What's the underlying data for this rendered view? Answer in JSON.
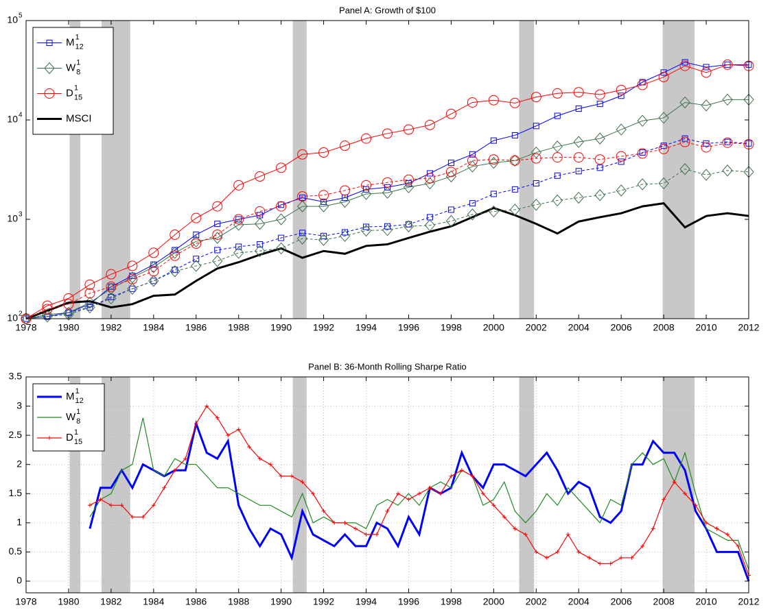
{
  "chart_data": [
    {
      "type": "line",
      "title": "Panel A: Growth of $100",
      "yscale": "log",
      "grid": false,
      "legend": "upper left",
      "xlim": [
        1978,
        2012
      ],
      "xticks": [
        1978,
        1980,
        1982,
        1984,
        1986,
        1988,
        1990,
        1992,
        1994,
        1996,
        1998,
        2000,
        2002,
        2004,
        2006,
        2008,
        2010,
        2012
      ],
      "ylim": [
        100,
        100000
      ],
      "yticks": [
        {
          "value": 100,
          "label": "10",
          "sup": "2"
        },
        {
          "value": 1000,
          "label": "10",
          "sup": "3"
        },
        {
          "value": 10000,
          "label": "10",
          "sup": "4"
        },
        {
          "value": 100000,
          "label": "10",
          "sup": "5"
        }
      ],
      "shaded": [
        [
          1980.05,
          1980.55
        ],
        [
          1981.55,
          1982.9
        ],
        [
          1990.55,
          1991.2
        ],
        [
          2001.2,
          2001.9
        ],
        [
          2007.95,
          2009.45
        ]
      ],
      "x": [
        1978,
        1979,
        1980,
        1981,
        1982,
        1983,
        1984,
        1985,
        1986,
        1987,
        1988,
        1989,
        1990,
        1991,
        1992,
        1993,
        1994,
        1995,
        1996,
        1997,
        1998,
        1999,
        2000,
        2001,
        2002,
        2003,
        2004,
        2005,
        2006,
        2007,
        2008,
        2009,
        2010,
        2011,
        2012
      ],
      "series": [
        {
          "name": "M",
          "sup": "1",
          "sub": "12",
          "color": "#0000ff",
          "style": "solid",
          "width": 1,
          "marker": "square",
          "values": [
            100,
            105,
            115,
            140,
            210,
            270,
            350,
            490,
            700,
            900,
            1000,
            1100,
            1400,
            1650,
            1500,
            1650,
            2000,
            2100,
            2300,
            2900,
            3700,
            4500,
            6200,
            7000,
            8700,
            11000,
            13000,
            14500,
            17500,
            24000,
            30000,
            38000,
            34000,
            36000,
            36000
          ]
        },
        {
          "name": "W",
          "sup": "1",
          "sub": "8",
          "color": "#3d7048",
          "style": "solid",
          "width": 1,
          "marker": "diamond",
          "values": [
            100,
            110,
            115,
            145,
            200,
            260,
            330,
            460,
            600,
            650,
            880,
            900,
            1000,
            1350,
            1350,
            1500,
            1800,
            1850,
            2100,
            2300,
            2700,
            3400,
            3700,
            3900,
            4700,
            5400,
            6000,
            6500,
            8000,
            9800,
            10500,
            15000,
            14000,
            16000,
            16000
          ]
        },
        {
          "name": "D",
          "sup": "1",
          "sub": "15",
          "color": "#ff0000",
          "style": "solid",
          "width": 1,
          "marker": "circle",
          "values": [
            100,
            135,
            160,
            220,
            280,
            340,
            460,
            700,
            1030,
            1350,
            2200,
            2700,
            3300,
            4500,
            4700,
            5500,
            6500,
            7300,
            8000,
            8900,
            11500,
            15000,
            15800,
            14800,
            17000,
            18500,
            19000,
            18000,
            20000,
            22500,
            27000,
            35000,
            30000,
            36000,
            35000
          ]
        },
        {
          "name": "MSCI",
          "color": "#000000",
          "style": "solid",
          "width": 3,
          "marker": "none",
          "values": [
            100,
            120,
            145,
            150,
            130,
            140,
            170,
            175,
            240,
            320,
            370,
            440,
            510,
            410,
            480,
            450,
            540,
            560,
            650,
            750,
            850,
            1050,
            1300,
            1100,
            900,
            720,
            950,
            1050,
            1150,
            1350,
            1450,
            830,
            1080,
            1150,
            1080
          ]
        },
        {
          "color": "#0000ff",
          "style": "dashed",
          "width": 1,
          "marker": "square",
          "values": [
            100,
            105,
            115,
            130,
            165,
            200,
            240,
            310,
            400,
            490,
            530,
            560,
            650,
            730,
            680,
            740,
            840,
            850,
            890,
            1050,
            1250,
            1450,
            1800,
            2000,
            2300,
            2750,
            3050,
            3300,
            3800,
            4700,
            5500,
            6500,
            5800,
            6000,
            5800
          ]
        },
        {
          "color": "#3d7048",
          "style": "dashed",
          "width": 1,
          "marker": "diamond",
          "values": [
            100,
            105,
            110,
            130,
            160,
            200,
            240,
            300,
            340,
            380,
            460,
            480,
            510,
            640,
            620,
            680,
            770,
            780,
            850,
            870,
            960,
            1120,
            1200,
            1250,
            1400,
            1550,
            1650,
            1750,
            1950,
            2250,
            2300,
            3200,
            2800,
            3100,
            3000
          ]
        },
        {
          "color": "#ff0000",
          "style": "dashed",
          "width": 1,
          "marker": "circle",
          "values": [
            100,
            125,
            140,
            180,
            210,
            250,
            300,
            430,
            570,
            700,
            1000,
            1200,
            1350,
            1700,
            1750,
            1950,
            2200,
            2350,
            2500,
            2600,
            3000,
            3900,
            4000,
            3900,
            4100,
            4200,
            4200,
            4000,
            4300,
            4600,
            5100,
            6000,
            5300,
            5900,
            5700
          ]
        }
      ]
    },
    {
      "type": "line",
      "title": "Panel B: 36-Month Rolling Sharpe Ratio",
      "yscale": "linear",
      "grid": true,
      "legend": "upper left",
      "xlim": [
        1978,
        2012
      ],
      "xticks": [
        1978,
        1980,
        1982,
        1984,
        1986,
        1988,
        1990,
        1992,
        1994,
        1996,
        1998,
        2000,
        2002,
        2004,
        2006,
        2008,
        2010,
        2012
      ],
      "ylim": [
        -0.2,
        3.5
      ],
      "yticks": [
        0,
        0.5,
        1,
        1.5,
        2,
        2.5,
        3,
        3.5
      ],
      "shaded": [
        [
          1980.05,
          1980.55
        ],
        [
          1981.55,
          1982.9
        ],
        [
          1990.55,
          1991.2
        ],
        [
          2001.2,
          2001.9
        ],
        [
          2007.95,
          2009.45
        ]
      ],
      "x": [
        1981,
        1981.5,
        1982,
        1982.5,
        1983,
        1983.5,
        1984,
        1984.5,
        1985,
        1985.5,
        1986,
        1986.5,
        1987,
        1987.5,
        1988,
        1988.5,
        1989,
        1989.5,
        1990,
        1990.5,
        1991,
        1991.5,
        1992,
        1992.5,
        1993,
        1993.5,
        1994,
        1994.5,
        1995,
        1995.5,
        1996,
        1996.5,
        1997,
        1997.5,
        1998,
        1998.5,
        1999,
        1999.5,
        2000,
        2000.5,
        2001,
        2001.5,
        2002,
        2002.5,
        2003,
        2003.5,
        2004,
        2004.5,
        2005,
        2005.5,
        2006,
        2006.5,
        2007,
        2007.5,
        2008,
        2008.5,
        2009,
        2009.5,
        2010,
        2010.5,
        2011,
        2011.5,
        2012
      ],
      "series": [
        {
          "name": "M",
          "sup": "1",
          "sub": "12",
          "color": "#0000ff",
          "style": "solid",
          "width": 3,
          "marker": "none",
          "values": [
            0.9,
            1.6,
            1.6,
            1.9,
            1.6,
            2.0,
            1.9,
            1.8,
            1.9,
            1.9,
            2.7,
            2.2,
            2.1,
            2.4,
            1.3,
            0.9,
            0.6,
            0.9,
            0.8,
            0.4,
            1.2,
            0.8,
            0.7,
            0.6,
            0.8,
            0.6,
            0.6,
            1.0,
            0.9,
            0.6,
            1.1,
            0.8,
            1.6,
            1.5,
            1.6,
            2.2,
            1.8,
            1.6,
            2.0,
            2.0,
            1.9,
            1.8,
            2.0,
            2.2,
            1.9,
            1.5,
            1.7,
            1.6,
            1.1,
            1.0,
            1.2,
            2.0,
            2.0,
            2.4,
            2.2,
            2.2,
            1.9,
            1.2,
            0.9,
            0.5,
            0.5,
            0.5,
            0.0
          ]
        },
        {
          "name": "W",
          "sup": "1",
          "sub": "8",
          "color": "#1e8a1e",
          "style": "solid",
          "width": 1.2,
          "marker": "none",
          "values": [
            1.1,
            1.4,
            1.5,
            1.9,
            2.0,
            2.8,
            1.9,
            1.8,
            2.1,
            2.0,
            2.0,
            1.8,
            1.6,
            1.6,
            1.5,
            1.4,
            1.3,
            1.3,
            1.2,
            1.1,
            1.5,
            1.0,
            1.1,
            1.0,
            1.0,
            1.0,
            0.9,
            1.3,
            1.4,
            1.3,
            1.5,
            1.3,
            1.6,
            1.7,
            1.6,
            1.9,
            1.8,
            1.3,
            1.4,
            1.7,
            1.2,
            1.0,
            1.2,
            1.5,
            1.3,
            1.6,
            1.4,
            1.2,
            1.0,
            1.4,
            1.3,
            2.0,
            2.2,
            2.0,
            2.1,
            1.7,
            2.2,
            1.5,
            0.9,
            0.8,
            0.7,
            0.7,
            0.2
          ]
        },
        {
          "name": "D",
          "sup": "1",
          "sub": "15",
          "color": "#ff0000",
          "style": "solid",
          "width": 1.2,
          "marker": "plus",
          "values": [
            1.3,
            1.4,
            1.3,
            1.3,
            1.1,
            1.1,
            1.3,
            1.6,
            1.9,
            2.1,
            2.7,
            3.0,
            2.8,
            2.5,
            2.6,
            2.3,
            2.1,
            2.0,
            1.8,
            1.8,
            1.7,
            1.5,
            1.2,
            1.0,
            1.0,
            0.9,
            0.8,
            0.8,
            1.2,
            1.5,
            1.4,
            1.5,
            1.6,
            1.5,
            1.8,
            1.9,
            1.8,
            1.5,
            1.3,
            1.1,
            0.9,
            0.8,
            0.5,
            0.4,
            0.5,
            0.8,
            0.5,
            0.4,
            0.3,
            0.3,
            0.4,
            0.4,
            0.6,
            0.9,
            1.4,
            1.7,
            1.5,
            1.3,
            1.0,
            0.9,
            0.8,
            0.6,
            0.1
          ]
        }
      ]
    }
  ]
}
